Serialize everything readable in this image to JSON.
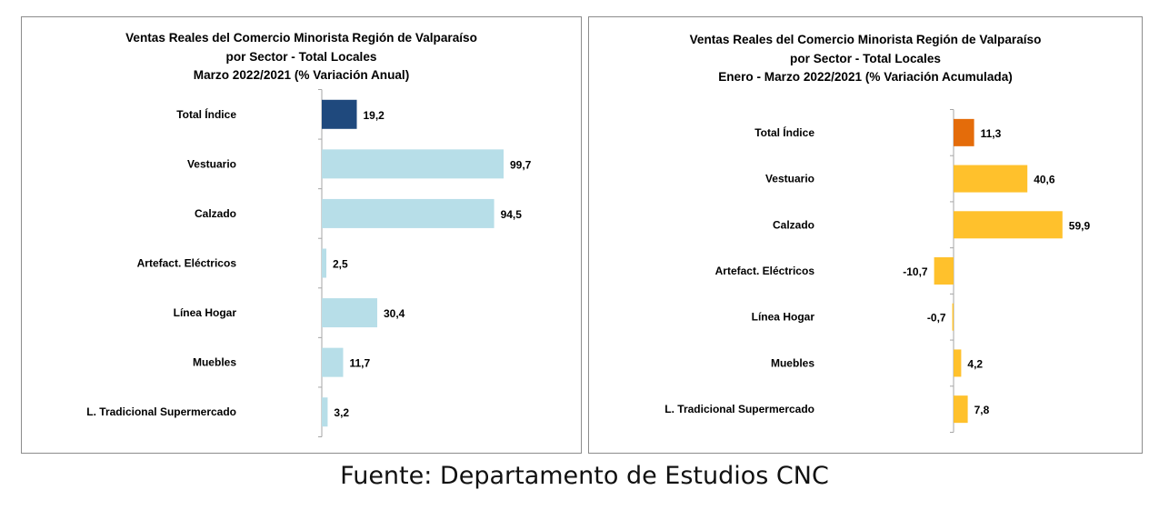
{
  "source_note": "Fuente: Departamento de Estudios CNC",
  "chart_data": [
    {
      "type": "bar",
      "orientation": "horizontal",
      "title_lines": [
        "Ventas Reales del Comercio Minorista Región de Valparaíso",
        "por Sector - Total Locales",
        "Marzo 2022/2021 (% Variación Anual)"
      ],
      "categories": [
        "Total Índice",
        "Vestuario",
        "Calzado",
        "Artefact. Eléctricos",
        "Línea Hogar",
        "Muebles",
        "L. Tradicional Supermercado"
      ],
      "values": [
        19.2,
        99.7,
        94.5,
        2.5,
        30.4,
        11.7,
        3.2
      ],
      "value_labels": [
        "19,2",
        "99,7",
        "94,5",
        "2,5",
        "30,4",
        "11,7",
        "3,2"
      ],
      "bar_colors": [
        "#1f497d",
        "#b7dee8",
        "#b7dee8",
        "#b7dee8",
        "#b7dee8",
        "#b7dee8",
        "#b7dee8"
      ],
      "xlim": [
        0,
        100
      ],
      "grid": false,
      "legend": "none"
    },
    {
      "type": "bar",
      "orientation": "horizontal",
      "title_lines": [
        "Ventas Reales del Comercio Minorista Región de Valparaíso",
        "por Sector  - Total Locales",
        "Enero - Marzo 2022/2021 (% Variación Acumulada)"
      ],
      "categories": [
        "Total Índice",
        "Vestuario",
        "Calzado",
        "Artefact. Eléctricos",
        "Línea Hogar",
        "Muebles",
        "L. Tradicional Supermercado"
      ],
      "values": [
        11.3,
        40.6,
        59.9,
        -10.7,
        -0.7,
        4.2,
        7.8
      ],
      "value_labels": [
        "11,3",
        "40,6",
        "59,9",
        "-10,7",
        "-0,7",
        "4,2",
        "7,8"
      ],
      "bar_colors": [
        "#e46c0a",
        "#ffc12c",
        "#ffc12c",
        "#ffc12c",
        "#ffc12c",
        "#ffc12c",
        "#ffc12c"
      ],
      "xlim": [
        -11,
        60
      ],
      "grid": false,
      "legend": "none"
    }
  ]
}
